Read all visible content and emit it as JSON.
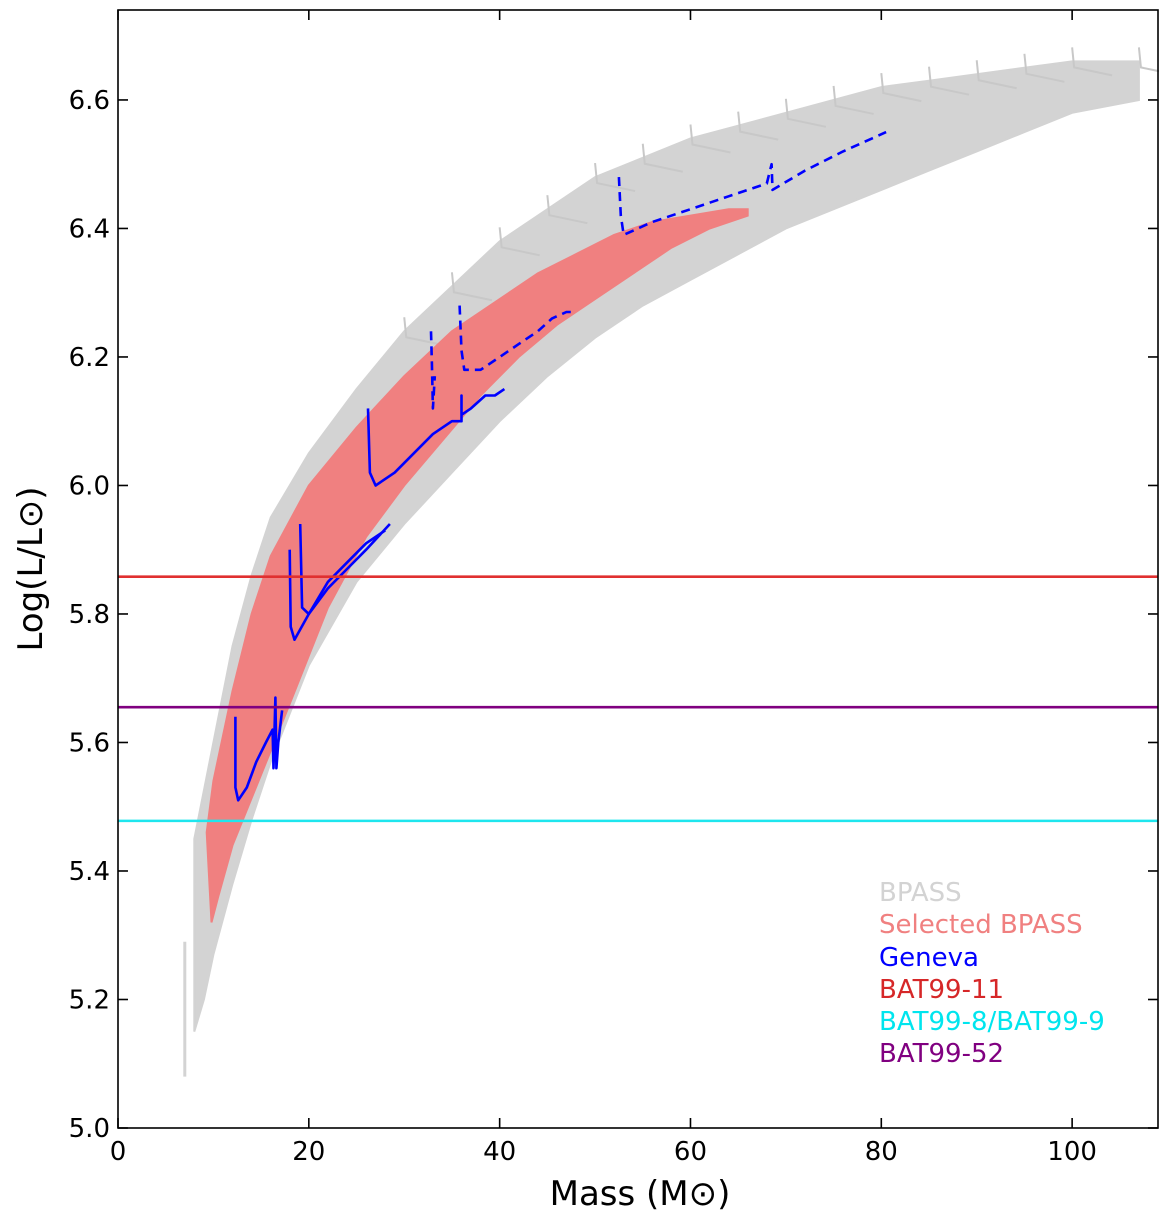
{
  "chart_data": {
    "type": "line",
    "xlabel": "Mass (M⊙)",
    "ylabel": "Log(L/L⊙)",
    "xlim": [
      0,
      109
    ],
    "ylim": [
      5.0,
      6.74
    ],
    "x_ticks": [
      0,
      20,
      40,
      60,
      80,
      100
    ],
    "y_ticks": [
      5.0,
      5.2,
      5.4,
      5.6,
      5.8,
      6.0,
      6.2,
      6.4,
      6.6
    ],
    "x_tick_labels": [
      "0",
      "20",
      "40",
      "60",
      "80",
      "100"
    ],
    "y_tick_labels": [
      "5.0",
      "5.2",
      "5.4",
      "5.6",
      "5.8",
      "6.0",
      "6.2",
      "6.4",
      "6.6"
    ],
    "grid": false,
    "legend_position": "bottom-right",
    "legend": [
      {
        "label": "BPASS",
        "color": "#d3d3d3"
      },
      {
        "label": "Selected BPASS",
        "color": "#f08080"
      },
      {
        "label": "Geneva",
        "color": "#0000ff"
      },
      {
        "label": "BAT99-11",
        "color": "#d62728"
      },
      {
        "label": "BAT99-8/BAT99-9",
        "color": "#00e5ee"
      },
      {
        "label": "BAT99-52",
        "color": "#800080"
      }
    ],
    "bpass_band": {
      "upper": [
        [
          8,
          5.45
        ],
        [
          10,
          5.6
        ],
        [
          12,
          5.75
        ],
        [
          14,
          5.86
        ],
        [
          16,
          5.95
        ],
        [
          20,
          6.05
        ],
        [
          25,
          6.15
        ],
        [
          30,
          6.24
        ],
        [
          35,
          6.31
        ],
        [
          40,
          6.38
        ],
        [
          45,
          6.43
        ],
        [
          50,
          6.48
        ],
        [
          55,
          6.51
        ],
        [
          60,
          6.54
        ],
        [
          65,
          6.56
        ],
        [
          70,
          6.58
        ],
        [
          75,
          6.6
        ],
        [
          80,
          6.62
        ],
        [
          85,
          6.63
        ],
        [
          90,
          6.64
        ],
        [
          95,
          6.65
        ],
        [
          100,
          6.66
        ],
        [
          107,
          6.66
        ]
      ],
      "lower": [
        [
          107,
          6.6
        ],
        [
          100,
          6.58
        ],
        [
          95,
          6.55
        ],
        [
          90,
          6.52
        ],
        [
          85,
          6.49
        ],
        [
          80,
          6.46
        ],
        [
          75,
          6.43
        ],
        [
          70,
          6.4
        ],
        [
          65,
          6.36
        ],
        [
          60,
          6.32
        ],
        [
          55,
          6.28
        ],
        [
          50,
          6.23
        ],
        [
          45,
          6.17
        ],
        [
          40,
          6.1
        ],
        [
          35,
          6.02
        ],
        [
          30,
          5.94
        ],
        [
          25,
          5.85
        ],
        [
          20,
          5.72
        ],
        [
          16,
          5.57
        ],
        [
          14,
          5.48
        ],
        [
          12,
          5.38
        ],
        [
          10,
          5.27
        ],
        [
          9,
          5.2
        ],
        [
          8,
          5.15
        ]
      ],
      "tail": [
        [
          7,
          5.08
        ],
        [
          7,
          5.29
        ]
      ]
    },
    "selected_band": {
      "upper": [
        [
          9.3,
          5.46
        ],
        [
          10,
          5.54
        ],
        [
          12,
          5.68
        ],
        [
          14,
          5.8
        ],
        [
          16,
          5.89
        ],
        [
          20,
          6.0
        ],
        [
          25,
          6.09
        ],
        [
          30,
          6.17
        ],
        [
          35,
          6.24
        ],
        [
          40,
          6.29
        ],
        [
          44,
          6.33
        ],
        [
          48,
          6.36
        ],
        [
          52,
          6.39
        ],
        [
          56,
          6.41
        ],
        [
          60,
          6.42
        ],
        [
          64,
          6.43
        ],
        [
          66,
          6.43
        ]
      ],
      "lower": [
        [
          66,
          6.42
        ],
        [
          62,
          6.4
        ],
        [
          58,
          6.37
        ],
        [
          54,
          6.33
        ],
        [
          50,
          6.29
        ],
        [
          46,
          6.25
        ],
        [
          42,
          6.2
        ],
        [
          38,
          6.14
        ],
        [
          34,
          6.07
        ],
        [
          30,
          6.0
        ],
        [
          26,
          5.92
        ],
        [
          22,
          5.81
        ],
        [
          18,
          5.66
        ],
        [
          15,
          5.55
        ],
        [
          12,
          5.44
        ],
        [
          10.5,
          5.36
        ],
        [
          9.8,
          5.32
        ]
      ]
    },
    "geneva_tracks": [
      {
        "style": "solid",
        "points": [
          [
            12.3,
            5.64
          ],
          [
            12.3,
            5.53
          ],
          [
            12.6,
            5.51
          ],
          [
            13.5,
            5.53
          ],
          [
            14.5,
            5.57
          ],
          [
            15.5,
            5.6
          ],
          [
            16.2,
            5.62
          ],
          [
            16.3,
            5.56
          ],
          [
            16.5,
            5.67
          ],
          [
            16.6,
            5.56
          ],
          [
            16.8,
            5.6
          ],
          [
            17.2,
            5.65
          ]
        ]
      },
      {
        "style": "solid",
        "points": [
          [
            18.0,
            5.9
          ],
          [
            18.1,
            5.78
          ],
          [
            18.5,
            5.76
          ],
          [
            20.0,
            5.8
          ],
          [
            22.0,
            5.85
          ],
          [
            24.0,
            5.88
          ],
          [
            26.0,
            5.91
          ],
          [
            28.0,
            5.93
          ]
        ]
      },
      {
        "style": "solid",
        "points": [
          [
            19.1,
            5.94
          ],
          [
            19.3,
            5.81
          ],
          [
            20.0,
            5.8
          ],
          [
            22.0,
            5.84
          ],
          [
            24.0,
            5.87
          ],
          [
            26.0,
            5.9
          ],
          [
            28.5,
            5.94
          ]
        ]
      },
      {
        "style": "solid",
        "points": [
          [
            26.2,
            6.12
          ],
          [
            26.4,
            6.02
          ],
          [
            27.0,
            6.0
          ],
          [
            29.0,
            6.02
          ],
          [
            31.0,
            6.05
          ],
          [
            33.0,
            6.08
          ],
          [
            35.0,
            6.1
          ],
          [
            36.0,
            6.1
          ],
          [
            36.0,
            6.14
          ],
          [
            36.0,
            6.11
          ],
          [
            37.0,
            6.12
          ],
          [
            38.5,
            6.14
          ],
          [
            39.5,
            6.14
          ],
          [
            40.5,
            6.15
          ]
        ]
      },
      {
        "style": "dashed",
        "points": [
          [
            32.8,
            6.24
          ],
          [
            32.9,
            6.19
          ],
          [
            33.0,
            6.12
          ],
          [
            33.2,
            6.17
          ]
        ]
      },
      {
        "style": "dashed",
        "points": [
          [
            35.8,
            6.28
          ],
          [
            36.0,
            6.21
          ],
          [
            36.3,
            6.18
          ],
          [
            38.0,
            6.18
          ],
          [
            40.0,
            6.2
          ],
          [
            42.0,
            6.22
          ],
          [
            44.0,
            6.24
          ],
          [
            45.5,
            6.26
          ],
          [
            47.0,
            6.27
          ],
          [
            48.0,
            6.27
          ]
        ]
      },
      {
        "style": "dashed",
        "points": [
          [
            52.5,
            6.48
          ],
          [
            52.7,
            6.42
          ],
          [
            53.0,
            6.39
          ],
          [
            56.0,
            6.41
          ],
          [
            60.0,
            6.43
          ],
          [
            64.0,
            6.45
          ],
          [
            68.0,
            6.47
          ],
          [
            68.5,
            6.5
          ],
          [
            68.6,
            6.46
          ],
          [
            72.0,
            6.49
          ],
          [
            76.0,
            6.52
          ],
          [
            80.5,
            6.55
          ]
        ]
      }
    ],
    "horizontal_lines": [
      {
        "name": "BAT99-11",
        "y": 5.858,
        "color": "#e03030"
      },
      {
        "name": "BAT99-52",
        "y": 5.655,
        "color": "#800080"
      },
      {
        "name": "BAT99-8/BAT99-9",
        "y": 5.478,
        "color": "#1ee6ee"
      }
    ]
  }
}
